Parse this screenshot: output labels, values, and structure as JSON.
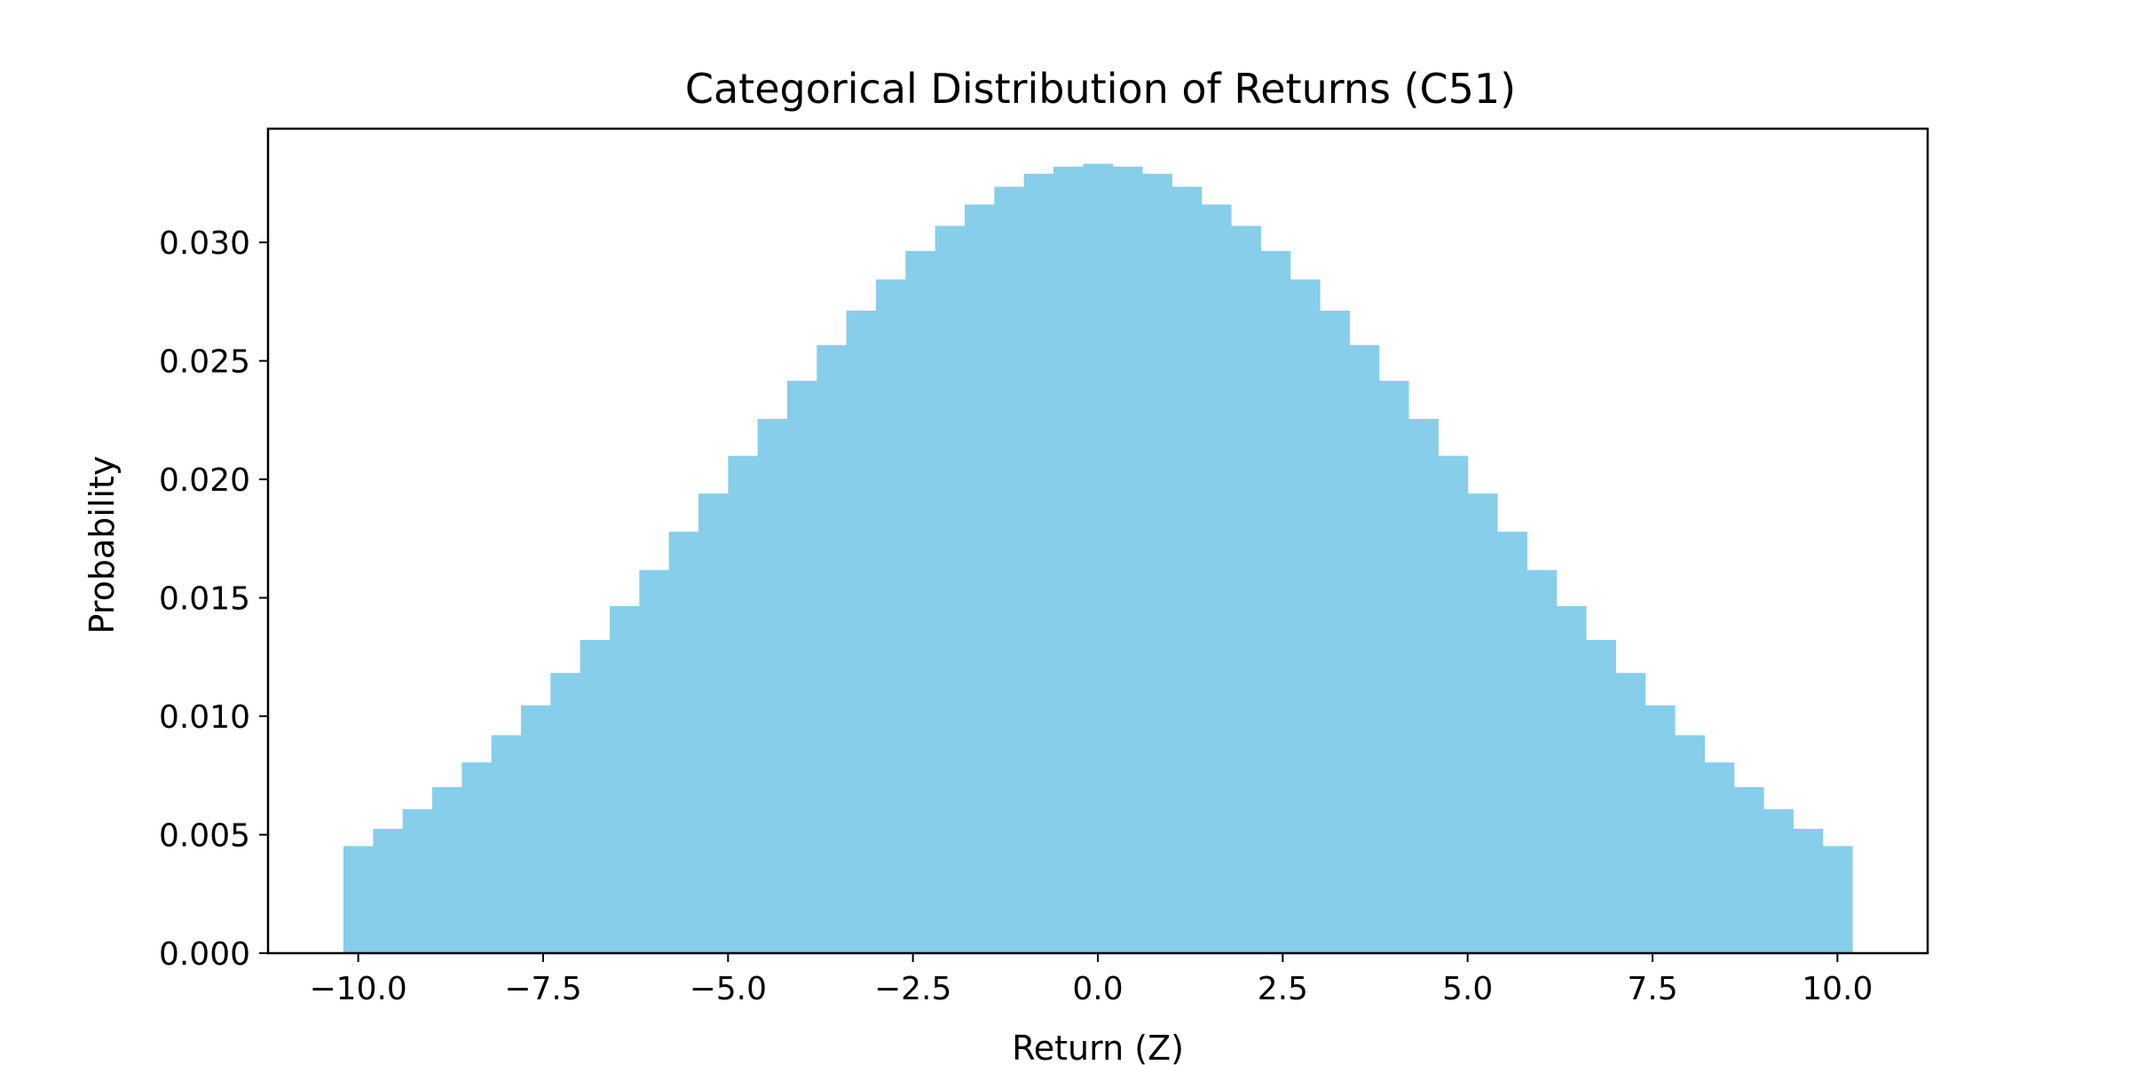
{
  "chart_data": {
    "type": "bar",
    "title": "Categorical Distribution of Returns (C51)",
    "xlabel": "Return (Z)",
    "ylabel": "Probability",
    "xlim": [
      -11.22,
      11.22
    ],
    "ylim": [
      0,
      0.0348
    ],
    "grid": false,
    "bar_color": "#87CEEB",
    "x": [
      -10.0,
      -9.6,
      -9.2,
      -8.8,
      -8.4,
      -8.0,
      -7.6,
      -7.2,
      -6.8,
      -6.4,
      -6.0,
      -5.6,
      -5.2,
      -4.8,
      -4.4,
      -4.0,
      -3.6,
      -3.2,
      -2.8,
      -2.4,
      -2.0,
      -1.6,
      -1.2,
      -0.8,
      -0.4,
      0.0,
      0.4,
      0.8,
      1.2,
      1.6,
      2.0,
      2.4,
      2.8,
      3.2,
      3.6,
      4.0,
      4.4,
      4.8,
      5.2,
      5.6,
      6.0,
      6.4,
      6.8,
      7.2,
      7.6,
      8.0,
      8.4,
      8.8,
      9.2,
      9.6,
      10.0
    ],
    "values": [
      0.00452,
      0.00525,
      0.00608,
      0.00701,
      0.00805,
      0.0092,
      0.01046,
      0.01183,
      0.01322,
      0.01465,
      0.01617,
      0.01779,
      0.0194,
      0.02099,
      0.02255,
      0.02416,
      0.02567,
      0.02712,
      0.02844,
      0.02964,
      0.0307,
      0.0316,
      0.03235,
      0.0329,
      0.0332,
      0.03332,
      0.0332,
      0.0329,
      0.03235,
      0.0316,
      0.0307,
      0.02964,
      0.02844,
      0.02712,
      0.02567,
      0.02416,
      0.02255,
      0.02099,
      0.0194,
      0.01779,
      0.01617,
      0.01465,
      0.01322,
      0.01183,
      0.01046,
      0.0092,
      0.00805,
      0.00701,
      0.00608,
      0.00525,
      0.00452
    ],
    "bar_width": 0.4,
    "xticks": [
      -10.0,
      -7.5,
      -5.0,
      -2.5,
      0.0,
      2.5,
      5.0,
      7.5,
      10.0
    ],
    "xtick_labels": [
      "−10.0",
      "−7.5",
      "−5.0",
      "−2.5",
      "0.0",
      "2.5",
      "5.0",
      "7.5",
      "10.0"
    ],
    "yticks": [
      0.0,
      0.005,
      0.01,
      0.015,
      0.02,
      0.025,
      0.03
    ],
    "ytick_labels": [
      "0.000",
      "0.005",
      "0.010",
      "0.015",
      "0.020",
      "0.025",
      "0.030"
    ]
  }
}
